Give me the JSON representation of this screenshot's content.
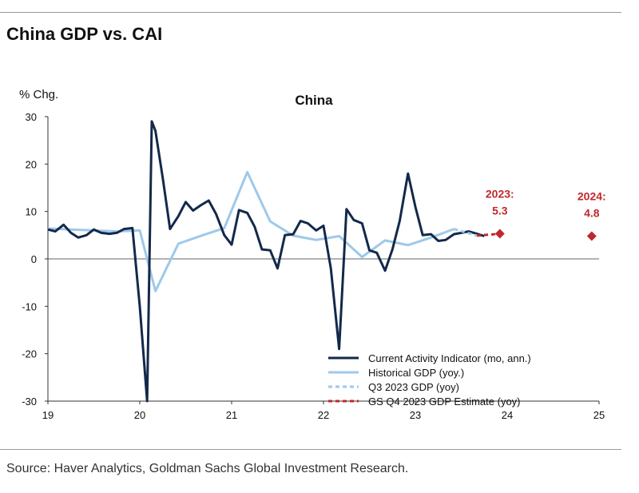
{
  "figure_title": "China GDP vs. CAI",
  "source": "Source: Haver Analytics, Goldman Sachs Global Investment Research.",
  "colors": {
    "cai": "#13294b",
    "historical_gdp": "#9dc9ea",
    "q3_gdp": "#9dc9ea",
    "gs_estimate": "#c0282d",
    "forecast_marker": "#c0282d"
  },
  "chart_data": {
    "type": "line",
    "title": "China",
    "ylabel": "% Chg.",
    "xlabel": "",
    "ylim": [
      -30,
      30
    ],
    "xlim": [
      2019.0,
      2025.0
    ],
    "yticks": [
      30,
      20,
      10,
      0,
      -10,
      -20,
      -30
    ],
    "yticklabels": [
      "30",
      "20",
      "10",
      "0",
      "-10",
      "-20",
      "-30"
    ],
    "xticks": [
      2019,
      2020,
      2021,
      2022,
      2023,
      2024,
      2025
    ],
    "xticklabels": [
      "19",
      "20",
      "21",
      "22",
      "23",
      "24",
      "25"
    ],
    "series": [
      {
        "name": "Current Activity Indicator (mo, ann.)",
        "style": "solid-dark",
        "x": [
          2019.0,
          2019.08,
          2019.17,
          2019.25,
          2019.33,
          2019.42,
          2019.5,
          2019.58,
          2019.67,
          2019.75,
          2019.83,
          2019.92,
          2020.0,
          2020.08,
          2020.13,
          2020.17,
          2020.25,
          2020.33,
          2020.42,
          2020.5,
          2020.58,
          2020.67,
          2020.75,
          2020.83,
          2020.92,
          2021.0,
          2021.08,
          2021.17,
          2021.25,
          2021.33,
          2021.42,
          2021.5,
          2021.58,
          2021.67,
          2021.75,
          2021.83,
          2021.92,
          2022.0,
          2022.08,
          2022.17,
          2022.25,
          2022.33,
          2022.42,
          2022.5,
          2022.58,
          2022.67,
          2022.75,
          2022.83,
          2022.92,
          2023.0,
          2023.08,
          2023.17,
          2023.25,
          2023.33,
          2023.42,
          2023.5,
          2023.58,
          2023.67,
          2023.75
        ],
        "values": [
          6.2,
          5.8,
          7.2,
          5.5,
          4.5,
          5.0,
          6.2,
          5.5,
          5.3,
          5.5,
          6.3,
          6.5,
          -10.0,
          -30.0,
          29.0,
          27.0,
          17.0,
          6.3,
          9.0,
          12.0,
          10.2,
          11.4,
          12.3,
          9.5,
          5.0,
          3.0,
          10.3,
          9.7,
          6.8,
          2.0,
          1.8,
          -2.0,
          5.0,
          5.2,
          8.0,
          7.5,
          6.0,
          7.0,
          -2.0,
          -19.0,
          10.5,
          8.2,
          7.5,
          1.8,
          1.3,
          -2.5,
          2.0,
          8.0,
          18.0,
          11.0,
          5.0,
          5.2,
          3.8,
          4.0,
          5.2,
          5.5,
          5.8,
          5.3,
          4.8
        ]
      },
      {
        "name": "Historical GDP (yoy.)",
        "style": "solid-light",
        "x": [
          2019.0,
          2019.25,
          2019.5,
          2019.75,
          2020.0,
          2020.17,
          2020.42,
          2020.67,
          2020.92,
          2021.17,
          2021.42,
          2021.67,
          2021.92,
          2022.17,
          2022.42,
          2022.67,
          2022.92,
          2023.17,
          2023.42
        ],
        "values": [
          6.4,
          6.2,
          6.0,
          5.8,
          6.0,
          -6.8,
          3.2,
          4.9,
          6.5,
          18.3,
          7.9,
          4.9,
          4.0,
          4.8,
          0.4,
          3.9,
          2.9,
          4.5,
          6.3
        ]
      },
      {
        "name": "Q3 2023 GDP (yoy)",
        "style": "dashed-light",
        "x": [
          2023.42,
          2023.67
        ],
        "values": [
          6.3,
          4.9
        ]
      },
      {
        "name": "GS Q4 2023 GDP Estimate (yoy)",
        "style": "dashed-red",
        "x": [
          2023.67,
          2023.92
        ],
        "values": [
          4.9,
          5.3
        ]
      }
    ],
    "annotations": [
      {
        "label_year": "2023:",
        "label_value": "5.3",
        "x": 2023.92,
        "y": 5.3
      },
      {
        "label_year": "2024:",
        "label_value": "4.8",
        "x": 2024.92,
        "y": 4.8
      }
    ]
  }
}
